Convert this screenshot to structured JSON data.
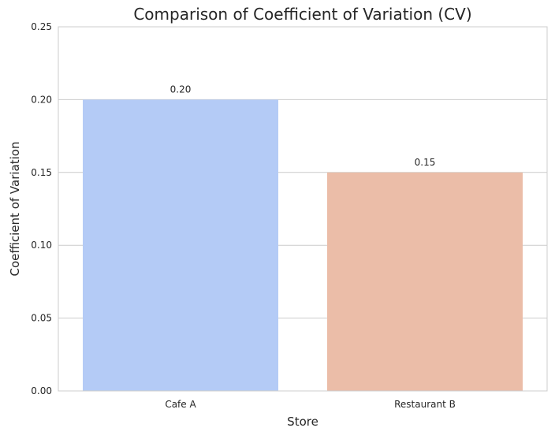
{
  "chart_data": {
    "type": "bar",
    "title": "Comparison of Coefficient of Variation (CV)",
    "xlabel": "Store",
    "ylabel": "Coefficient of Variation",
    "categories": [
      "Cafe A",
      "Restaurant B"
    ],
    "values": [
      0.2,
      0.15
    ],
    "value_labels": [
      "0.20",
      "0.15"
    ],
    "colors": [
      "#b4cbf6",
      "#ebbda8"
    ],
    "ylim": [
      0,
      0.25
    ],
    "yticks": [
      0.0,
      0.05,
      0.1,
      0.15,
      0.2,
      0.25
    ],
    "ytick_labels": [
      "0.00",
      "0.05",
      "0.10",
      "0.15",
      "0.20",
      "0.25"
    ],
    "grid": true,
    "grid_axis": "y",
    "legend": false
  }
}
